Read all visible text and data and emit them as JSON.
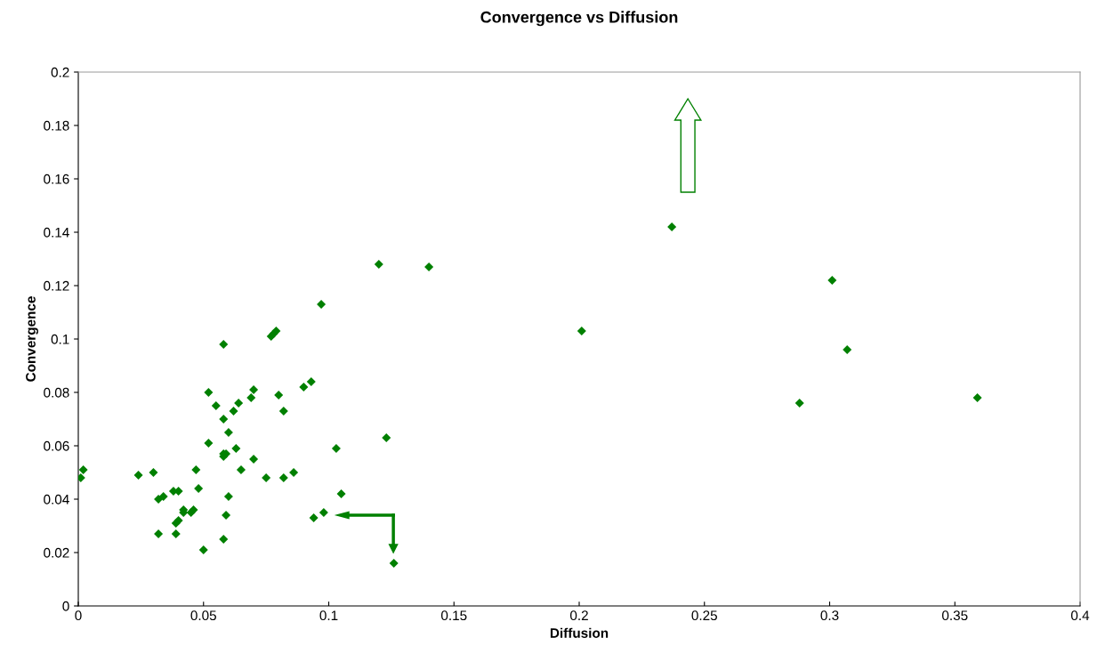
{
  "chart_data": {
    "type": "scatter",
    "title": "Convergence vs Diffusion",
    "xlabel": "Diffusion",
    "ylabel": "Convergence",
    "x": [
      0.001,
      0.002,
      0.024,
      0.03,
      0.032,
      0.032,
      0.034,
      0.038,
      0.04,
      0.039,
      0.039,
      0.04,
      0.042,
      0.042,
      0.045,
      0.046,
      0.047,
      0.048,
      0.05,
      0.052,
      0.052,
      0.055,
      0.058,
      0.058,
      0.058,
      0.058,
      0.059,
      0.059,
      0.058,
      0.06,
      0.06,
      0.062,
      0.063,
      0.064,
      0.065,
      0.069,
      0.07,
      0.07,
      0.075,
      0.077,
      0.078,
      0.079,
      0.08,
      0.082,
      0.082,
      0.086,
      0.09,
      0.093,
      0.094,
      0.097,
      0.098,
      0.103,
      0.105,
      0.12,
      0.123,
      0.126,
      0.14,
      0.201,
      0.237,
      0.288,
      0.301,
      0.307,
      0.359
    ],
    "series": [
      {
        "color": "#008000",
        "values": [
          0.048,
          0.051,
          0.049,
          0.05,
          0.027,
          0.04,
          0.041,
          0.043,
          0.043,
          0.027,
          0.031,
          0.032,
          0.035,
          0.036,
          0.035,
          0.036,
          0.051,
          0.044,
          0.021,
          0.061,
          0.08,
          0.075,
          0.07,
          0.098,
          0.057,
          0.056,
          0.057,
          0.034,
          0.025,
          0.065,
          0.041,
          0.073,
          0.059,
          0.076,
          0.051,
          0.078,
          0.081,
          0.055,
          0.048,
          0.101,
          0.102,
          0.103,
          0.079,
          0.073,
          0.048,
          0.05,
          0.082,
          0.084,
          0.033,
          0.113,
          0.035,
          0.059,
          0.042,
          0.128,
          0.063,
          0.016,
          0.127,
          0.103,
          0.142,
          0.076,
          0.122,
          0.096,
          0.078
        ]
      }
    ],
    "xlim": [
      0,
      0.4
    ],
    "ylim": [
      0,
      0.2
    ],
    "xticks": [
      0,
      0.05,
      0.1,
      0.15,
      0.2,
      0.25,
      0.3,
      0.35,
      0.4
    ],
    "yticks": [
      0,
      0.02,
      0.04,
      0.06,
      0.08,
      0.1,
      0.12,
      0.14,
      0.16,
      0.18,
      0.2
    ],
    "marker": "diamond",
    "grid": false,
    "legend": false
  }
}
